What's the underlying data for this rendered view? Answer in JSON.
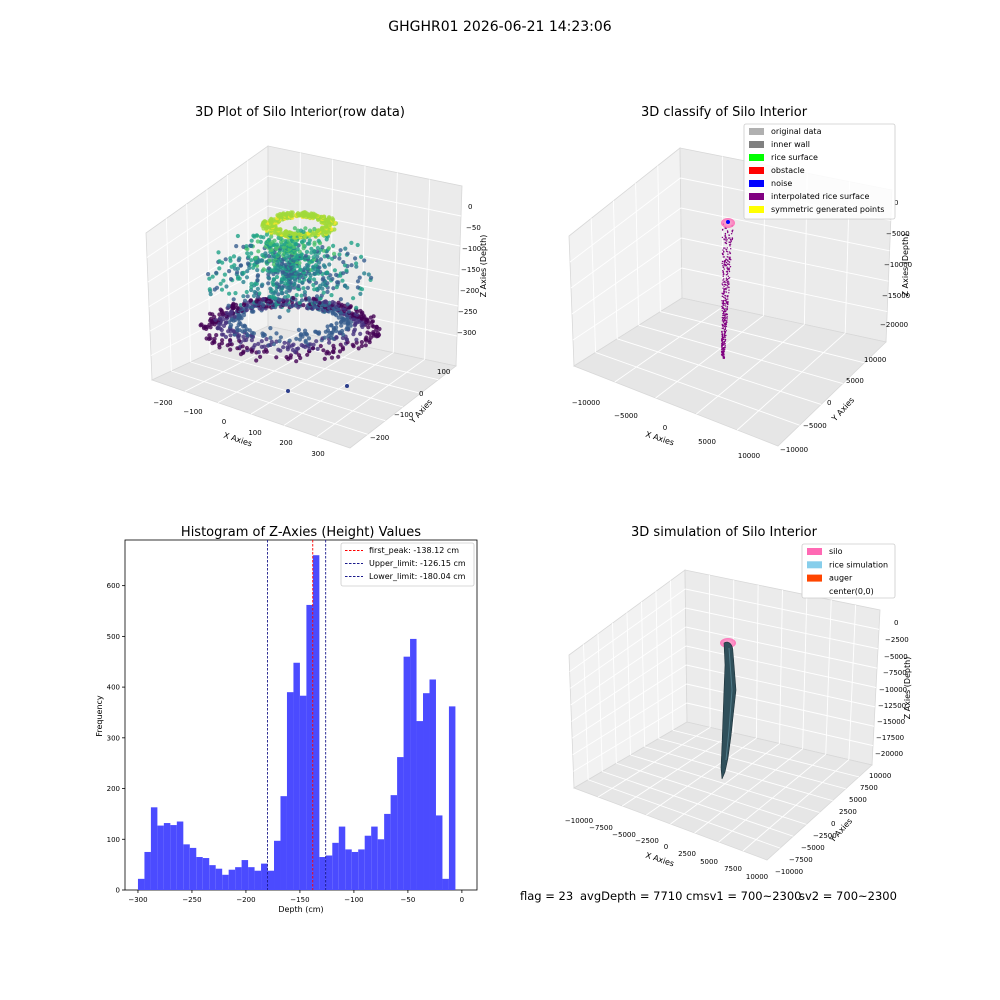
{
  "suptitle": "GHGHR01 2026-06-21 14:23:06",
  "status_line": {
    "flag": "flag = 23",
    "avg": "avgDepth = 7710 cmsv1 = 700~2300",
    "sv2": "sv2 = 700~2300"
  },
  "colors": {
    "hist_bar": "#4b4bff",
    "peak_line": "#ff0000",
    "limit_line": "#1a1a8c",
    "silo": "#ff69b4",
    "rice": "#2f4f5a"
  },
  "chart_data": [
    {
      "type": "scatter",
      "projection": "3d",
      "title": "3D Plot of Silo Interior(row data)",
      "xlabel": "X Axies",
      "ylabel": "Y Axies",
      "zlabel": "Z Axies (Depth)",
      "x_ticks": [
        "−200",
        "−100",
        "0",
        "100",
        "200",
        "300"
      ],
      "y_ticks": [
        "100",
        "0",
        "−100",
        "−200"
      ],
      "z_ticks": [
        "0",
        "−50",
        "−100",
        "−150",
        "−200",
        "−250",
        "−300"
      ],
      "colormap": "viridis",
      "zlim": [
        -320,
        0
      ]
    },
    {
      "type": "scatter",
      "projection": "3d",
      "title": "3D classify of Silo Interior",
      "xlabel": "X Axies",
      "ylabel": "Y Axies",
      "zlabel": "Z Axies (Depth)",
      "x_ticks": [
        "−10000",
        "−5000",
        "0",
        "5000",
        "10000"
      ],
      "y_ticks": [
        "10000",
        "5000",
        "0",
        "−5000",
        "−10000"
      ],
      "z_ticks": [
        "0",
        "−5000",
        "−10000",
        "−15000",
        "−20000"
      ],
      "legend": [
        {
          "label": "original data",
          "color": "#b0b0b0"
        },
        {
          "label": "inner wall",
          "color": "#808080"
        },
        {
          "label": "rice surface",
          "color": "#00ff00"
        },
        {
          "label": "obstacle",
          "color": "#ff0000"
        },
        {
          "label": "noise",
          "color": "#0000ff"
        },
        {
          "label": "interpolated rice surface",
          "color": "#800080"
        },
        {
          "label": "symmetric generated points",
          "color": "#ffff00"
        }
      ],
      "legend_loc": "upper right"
    },
    {
      "type": "bar",
      "title": "Histogram of Z-Axies (Height) Values",
      "xlabel": "Depth (cm)",
      "ylabel": "Frequency",
      "xlim": [
        -312,
        14
      ],
      "ylim": [
        0,
        690
      ],
      "x_ticks": [
        -300,
        -250,
        -200,
        -150,
        -100,
        -50,
        0
      ],
      "x_tick_labels": [
        "−300",
        "−250",
        "−200",
        "−150",
        "−100",
        "−50",
        "0"
      ],
      "y_ticks": [
        0,
        100,
        200,
        300,
        400,
        500,
        600
      ],
      "bin_edges_start": -300,
      "bin_width": 6,
      "values": [
        22,
        75,
        163,
        127,
        132,
        128,
        135,
        90,
        83,
        65,
        63,
        49,
        42,
        30,
        40,
        45,
        59,
        45,
        38,
        52,
        38,
        97,
        185,
        390,
        448,
        383,
        562,
        660,
        65,
        68,
        93,
        125,
        80,
        75,
        80,
        107,
        125,
        100,
        150,
        187,
        262,
        460,
        495,
        333,
        388,
        415,
        147,
        22,
        362
      ],
      "vlines": [
        {
          "label": "first_peak: -138.12 cm",
          "x": -138.12,
          "style": "peak"
        },
        {
          "label": "Upper_limit: -126.15 cm",
          "x": -126.15,
          "style": "limit"
        },
        {
          "label": "Lower_limit: -180.04 cm",
          "x": -180.04,
          "style": "limit"
        }
      ],
      "legend_loc": "upper right"
    },
    {
      "type": "surface",
      "projection": "3d",
      "title": "3D simulation of Silo Interior",
      "xlabel": "X Axies",
      "ylabel": "Y Axies",
      "zlabel": "Z Axies (Depth)",
      "x_ticks": [
        "−10000",
        "−7500",
        "−5000",
        "−2500",
        "0",
        "2500",
        "5000",
        "7500",
        "10000"
      ],
      "y_ticks": [
        "10000",
        "7500",
        "5000",
        "2500",
        "0",
        "−2500",
        "−5000",
        "−7500",
        "−10000"
      ],
      "z_ticks": [
        "0",
        "−2500",
        "−5000",
        "−7500",
        "−10000",
        "−12500",
        "−15000",
        "−17500",
        "−20000"
      ],
      "legend": [
        {
          "label": "silo",
          "color": "#ff69b4"
        },
        {
          "label": "rice simulation",
          "color": "#87ceeb"
        },
        {
          "label": "auger",
          "color": "#ff4500"
        },
        {
          "label": "center(0,0)",
          "color": ""
        }
      ],
      "legend_loc": "upper right"
    }
  ]
}
